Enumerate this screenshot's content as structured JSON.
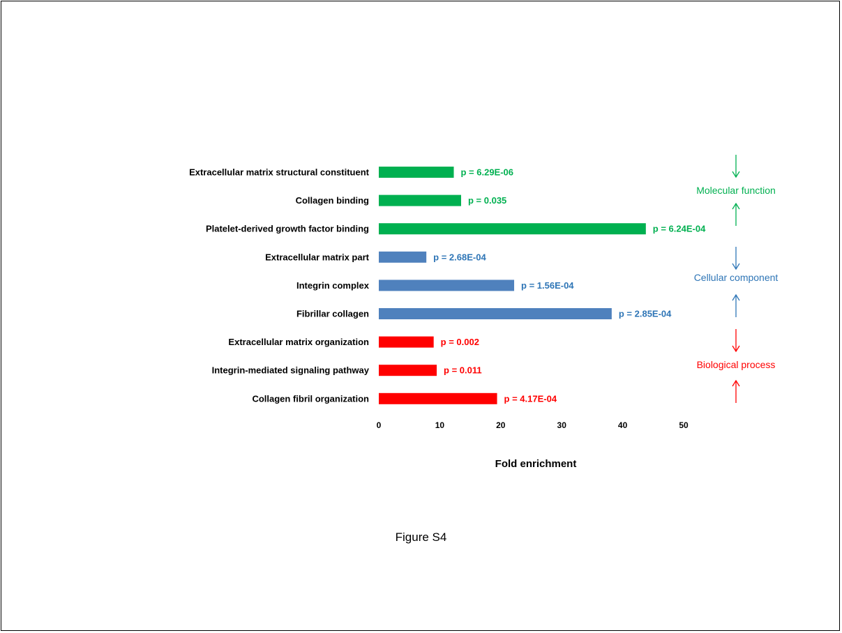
{
  "figure_caption": "Figure S4",
  "colors": {
    "molecular": "#00b050",
    "cellular": "#4f81bd",
    "biological": "#ff0000",
    "cellular_text": "#2e75b6"
  },
  "chart_data": {
    "type": "bar",
    "orientation": "horizontal",
    "title": "",
    "xlabel": "Fold enrichment",
    "ylabel": "",
    "xlim": [
      0,
      50
    ],
    "xticks": [
      "0",
      "10",
      "20",
      "30",
      "40",
      "50"
    ],
    "grid": false,
    "categories": [
      "Extracellular matrix structural constituent",
      "Collagen binding",
      "Platelet-derived growth factor binding",
      "Extracellular matrix part",
      "Integrin complex",
      "Fibrillar collagen",
      "Extracellular matrix organization",
      "Integrin-mediated signaling pathway",
      "Collagen fibril organization"
    ],
    "values": [
      12.3,
      13.5,
      43.8,
      7.8,
      22.2,
      38.2,
      9.0,
      9.5,
      19.4
    ],
    "annotations": [
      "p = 6.29E-06",
      "p = 0.035",
      "p = 6.24E-04",
      "p = 2.68E-04",
      "p = 1.56E-04",
      "p = 2.85E-04",
      "p = 0.002",
      "p = 0.011",
      "p = 4.17E-04"
    ],
    "bar_groups": [
      "molecular",
      "molecular",
      "molecular",
      "cellular",
      "cellular",
      "cellular",
      "biological",
      "biological",
      "biological"
    ],
    "group_labels": [
      {
        "key": "molecular",
        "label": "Molecular function"
      },
      {
        "key": "cellular",
        "label": "Cellular  component"
      },
      {
        "key": "biological",
        "label": "Biological process"
      }
    ]
  }
}
